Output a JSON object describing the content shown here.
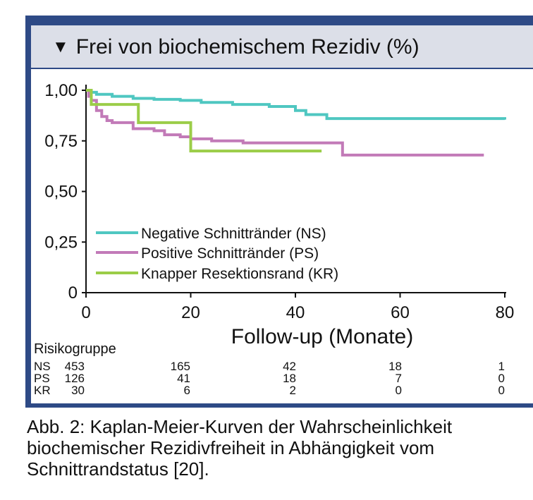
{
  "panel": {
    "title": "Frei von biochemischem Rezidiv (%)",
    "title_marker": "▼"
  },
  "colors": {
    "frame": "#2e4a86",
    "header_bg": "#dcdfe8",
    "ns": "#4fc7c1",
    "ps": "#c27ab8",
    "kr": "#9bcd48"
  },
  "chart_data": {
    "type": "line",
    "xlabel": "Follow-up (Monate)",
    "ylabel": "",
    "x_ticks": [
      "0",
      "20",
      "40",
      "60",
      "80"
    ],
    "y_ticks": [
      "0",
      "0,25",
      "0,50",
      "0,75",
      "1,00"
    ],
    "xlim": [
      0,
      80
    ],
    "ylim": [
      0,
      1
    ],
    "series": [
      {
        "name": "Negative Schnittränder (NS)",
        "key": "ns",
        "points": [
          [
            0,
            1.0
          ],
          [
            1,
            0.99
          ],
          [
            2,
            0.98
          ],
          [
            5,
            0.97
          ],
          [
            9,
            0.96
          ],
          [
            13,
            0.955
          ],
          [
            18,
            0.95
          ],
          [
            22,
            0.94
          ],
          [
            28,
            0.93
          ],
          [
            35,
            0.92
          ],
          [
            40,
            0.9
          ],
          [
            42,
            0.88
          ],
          [
            46,
            0.86
          ],
          [
            80,
            0.855
          ]
        ]
      },
      {
        "name": "Positive Schnittränder (PS)",
        "key": "ps",
        "points": [
          [
            0,
            1.0
          ],
          [
            0.5,
            0.97
          ],
          [
            1,
            0.95
          ],
          [
            2,
            0.9
          ],
          [
            3,
            0.87
          ],
          [
            4,
            0.85
          ],
          [
            5,
            0.84
          ],
          [
            9,
            0.81
          ],
          [
            13,
            0.8
          ],
          [
            15,
            0.78
          ],
          [
            18,
            0.77
          ],
          [
            20,
            0.76
          ],
          [
            24,
            0.75
          ],
          [
            30,
            0.74
          ],
          [
            49,
            0.68
          ],
          [
            76,
            0.68
          ]
        ]
      },
      {
        "name": "Knapper Resektionsrand (KR)",
        "key": "kr",
        "points": [
          [
            0,
            1.0
          ],
          [
            1,
            0.93
          ],
          [
            10,
            0.93
          ],
          [
            10,
            0.84
          ],
          [
            20,
            0.84
          ],
          [
            20,
            0.7
          ],
          [
            45,
            0.7
          ]
        ]
      }
    ],
    "legend": [
      "Negative Schnittränder (NS)",
      "Positive Schnittränder (PS)",
      "Knapper Resektionsrand (KR)"
    ]
  },
  "risk_table": {
    "title": "Risikogruppe",
    "rows": [
      {
        "label": "NS",
        "values": [
          "453",
          "165",
          "42",
          "18",
          "1"
        ]
      },
      {
        "label": "PS",
        "values": [
          "126",
          "41",
          "18",
          "7",
          "0"
        ]
      },
      {
        "label": "KR",
        "values": [
          "30",
          "6",
          "2",
          "0",
          "0"
        ]
      }
    ]
  },
  "caption": "Abb. 2: Kaplan-Meier-Kurven der Wahrscheinlichkeit biochemischer Rezidivfreiheit in Abhängigkeit vom Schnittrandstatus [20]."
}
